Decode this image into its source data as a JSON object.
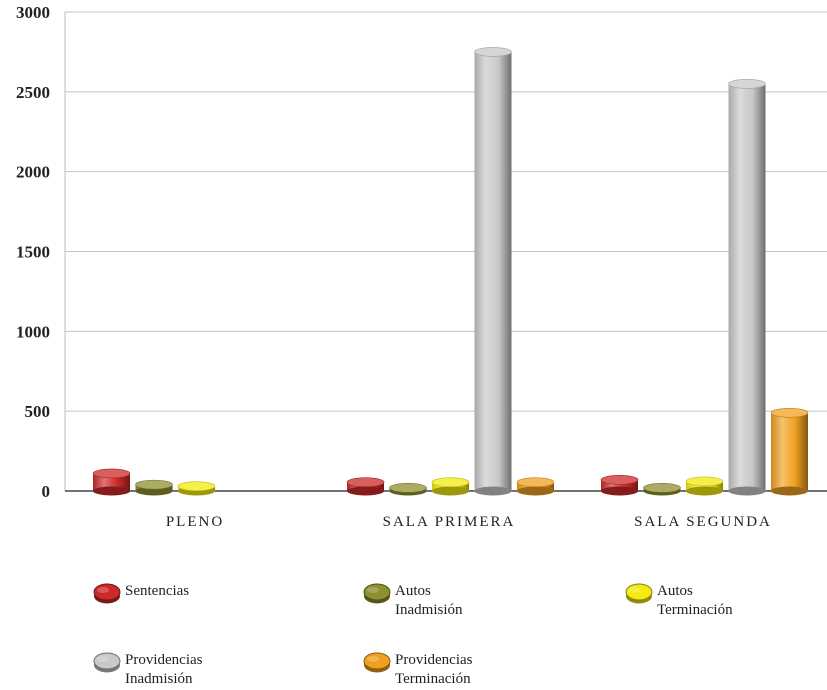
{
  "chart_data": {
    "type": "bar",
    "categories": [
      "PLENO",
      "SALA PRIMERA",
      "SALA SEGUNDA"
    ],
    "series": [
      {
        "name": "Sentencias",
        "values": [
          110,
          55,
          70
        ],
        "color": "#cc2a2a"
      },
      {
        "name": "Autos Inadmisión",
        "values": [
          40,
          20,
          20
        ],
        "color": "#8f8f30"
      },
      {
        "name": "Autos Terminación",
        "values": [
          30,
          55,
          60
        ],
        "color": "#f2ea10"
      },
      {
        "name": "Providencias Inadmisión",
        "values": [
          0,
          2750,
          2550
        ],
        "color": "#c8c8c8"
      },
      {
        "name": "Providencias Terminación",
        "values": [
          0,
          55,
          490
        ],
        "color": "#f0a020"
      }
    ],
    "yticks": [
      "0",
      "500",
      "1000",
      "1500",
      "2000",
      "2500",
      "3000"
    ],
    "ylim": [
      0,
      3000
    ],
    "grid": true,
    "legend_position": "bottom",
    "title": "",
    "xlabel": "",
    "ylabel": ""
  },
  "legend": [
    {
      "line1": "Sentencias",
      "line2": ""
    },
    {
      "line1": "Autos",
      "line2": "Inadmisión"
    },
    {
      "line1": "Autos",
      "line2": "Terminación"
    },
    {
      "line1": "Providencias",
      "line2": "Inadmisión"
    },
    {
      "line1": "Providencias",
      "line2": "Terminación"
    }
  ]
}
